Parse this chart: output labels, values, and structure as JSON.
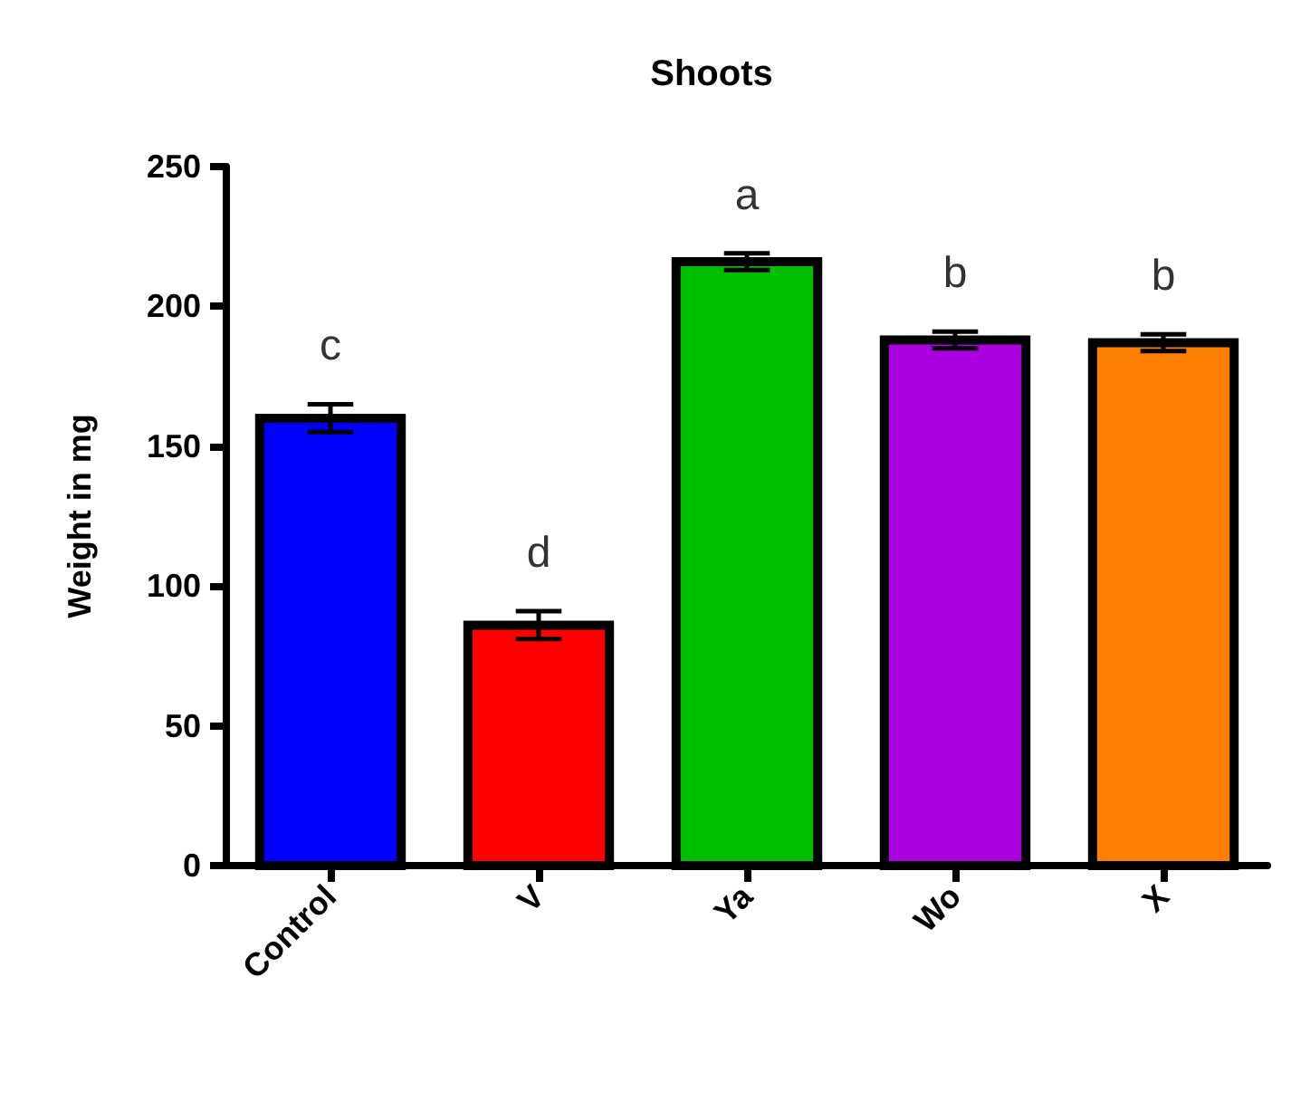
{
  "chart_data": {
    "type": "bar",
    "title": "Shoots",
    "ylabel": "Weight in mg",
    "categories": [
      "Control",
      "V",
      "Ya",
      "Wo",
      "X"
    ],
    "values": [
      160,
      86,
      216,
      188,
      187
    ],
    "errors": [
      5,
      5,
      3,
      3,
      3
    ],
    "colors": [
      "#0000ff",
      "#ff0000",
      "#00bf00",
      "#aa00e0",
      "#ff8000"
    ],
    "ylim": [
      0,
      250
    ],
    "yticks": [
      0,
      50,
      100,
      150,
      200,
      250
    ],
    "grid": false,
    "annotations": [
      "c",
      "d",
      "a",
      "b",
      "b"
    ]
  }
}
